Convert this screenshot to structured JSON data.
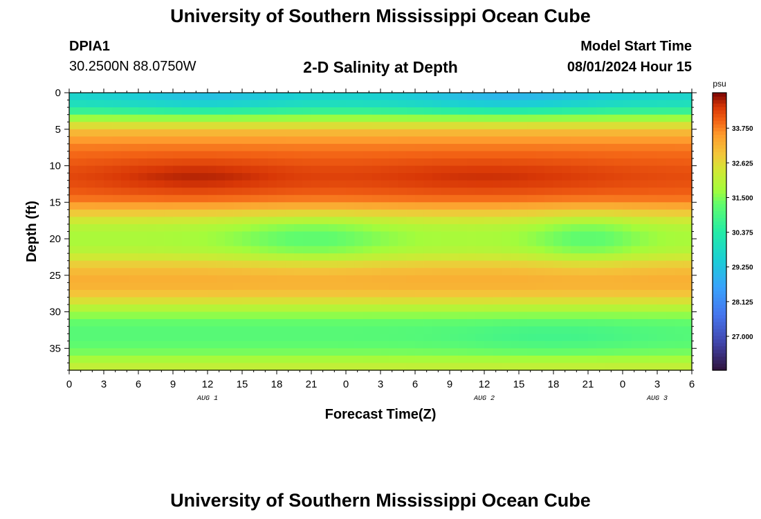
{
  "page": {
    "title": "University of Southern Mississippi Ocean Cube",
    "footer_title": "University of Southern Mississippi Ocean Cube",
    "station_id": "DPIA1",
    "station_coords": "30.2500N  88.0750W",
    "plot_title": "2-D Salinity at Depth",
    "model_label": "Model Start Time",
    "model_start": "08/01/2024 Hour 15"
  },
  "chart_data": {
    "type": "heatmap",
    "title": "2-D Salinity at Depth",
    "xlabel": "Forecast Time(Z)",
    "ylabel": "Depth (ft)",
    "x_unit": "forecast hours from 00Z Aug 1",
    "x_range": [
      0,
      54
    ],
    "x_ticks": [
      0,
      3,
      6,
      9,
      12,
      15,
      18,
      21,
      24,
      27,
      30,
      33,
      36,
      39,
      42,
      45,
      48,
      51,
      54
    ],
    "x_tick_labels": [
      "0",
      "3",
      "6",
      "9",
      "12",
      "15",
      "18",
      "21",
      "0",
      "3",
      "6",
      "9",
      "12",
      "15",
      "18",
      "21",
      "0",
      "3",
      "6"
    ],
    "date_labels": [
      {
        "x": 12,
        "label": "AUG 1"
      },
      {
        "x": 36,
        "label": "AUG 2"
      },
      {
        "x": 51,
        "label": "AUG 3"
      }
    ],
    "y_range": [
      0,
      38
    ],
    "y_reversed": true,
    "y_ticks": [
      0,
      5,
      10,
      15,
      20,
      25,
      30,
      35
    ],
    "y_tick_labels": [
      "0",
      "5",
      "10",
      "15",
      "20",
      "25",
      "30",
      "35"
    ],
    "colorbar": {
      "unit": "psu",
      "range": [
        25.9,
        34.9
      ],
      "ticks": [
        27.0,
        28.125,
        29.25,
        30.375,
        31.5,
        32.625,
        33.75
      ],
      "tick_labels": [
        "27.000",
        "28.125",
        "29.250",
        "30.375",
        "31.500",
        "32.625",
        "33.750"
      ]
    },
    "profile_depths": [
      0,
      1,
      2,
      3,
      4,
      5,
      6,
      7,
      8,
      9,
      10,
      11,
      12,
      13,
      14,
      15,
      16,
      17,
      18,
      19,
      20,
      21,
      22,
      23,
      24,
      25,
      26,
      27,
      28,
      29,
      30,
      31,
      32,
      33,
      34,
      35,
      36,
      37,
      38
    ],
    "base_profile": [
      29.6,
      29.8,
      30.2,
      31.2,
      32.2,
      32.9,
      33.4,
      33.7,
      33.9,
      34.0,
      34.1,
      34.2,
      34.2,
      34.1,
      34.0,
      33.7,
      33.1,
      32.6,
      32.1,
      31.9,
      31.8,
      31.9,
      32.1,
      32.6,
      33.0,
      33.2,
      33.3,
      33.1,
      32.8,
      32.2,
      31.8,
      31.4,
      31.2,
      31.1,
      31.2,
      31.3,
      31.6,
      32.0,
      32.3
    ],
    "features": [
      {
        "label": "fresh core near 20 ft",
        "x_center": 21,
        "x_width": 5,
        "depth_center": 20,
        "depth_width": 2.5,
        "delta": -0.6
      },
      {
        "label": "fresh core near 20 ft",
        "x_center": 45,
        "x_width": 3.5,
        "depth_center": 20,
        "depth_width": 2.5,
        "delta": -0.6
      },
      {
        "label": "high salinity core",
        "x_center": 11,
        "x_width": 6,
        "depth_center": 11.5,
        "depth_width": 1.8,
        "delta": 0.4
      },
      {
        "label": "high salinity core",
        "x_center": 36,
        "x_width": 8,
        "depth_center": 11.5,
        "depth_width": 1.8,
        "delta": 0.3
      },
      {
        "label": "fresh surface",
        "x_center": 12,
        "x_width": 5,
        "depth_center": 0.5,
        "depth_width": 1.5,
        "delta": -0.5
      },
      {
        "label": "fresh surface",
        "x_center": 38,
        "x_width": 6,
        "depth_center": 0.5,
        "depth_width": 1.5,
        "delta": -0.7
      },
      {
        "label": "fresh lower layer",
        "x_center": 42,
        "x_width": 6,
        "depth_center": 33.5,
        "depth_width": 1.5,
        "delta": -0.3
      }
    ]
  }
}
